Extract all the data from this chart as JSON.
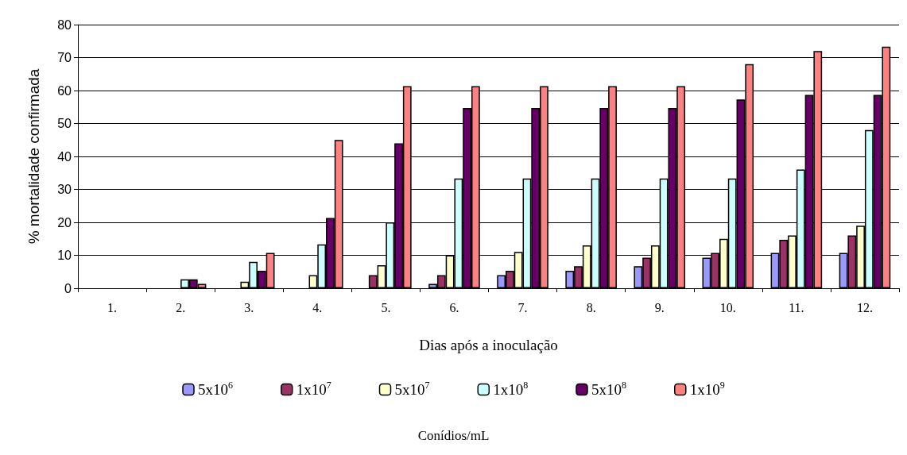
{
  "chart_data": {
    "type": "bar",
    "xlabel": "Dias após a inoculação",
    "ylabel": "% mortalidade confirmada",
    "legend_title": "Conídios/mL",
    "categories": [
      "1.",
      "2.",
      "3.",
      "4.",
      "5.",
      "6.",
      "7.",
      "8.",
      "9.",
      "10.",
      "11.",
      "12."
    ],
    "series": [
      {
        "name": "5x10$^{6}$",
        "color": "#9999ff",
        "values": [
          0,
          0,
          0,
          0,
          0,
          1.3,
          4,
          5.3,
          6.7,
          9.3,
          10.7,
          10.7
        ]
      },
      {
        "name": "1x10$^{7}$",
        "color": "#993366",
        "values": [
          0,
          0,
          0,
          0,
          4,
          4,
          5.3,
          6.7,
          9.3,
          10.7,
          14.7,
          16
        ]
      },
      {
        "name": "5x10$^{7}$",
        "color": "#ffffcc",
        "values": [
          0,
          0,
          2,
          4,
          7,
          10,
          11,
          13,
          13,
          15,
          16,
          19
        ]
      },
      {
        "name": "1x10$^{8}$",
        "color": "#ccffff",
        "values": [
          0,
          2.7,
          8,
          13.3,
          20,
          33.3,
          33.3,
          33.3,
          33.3,
          33.3,
          36,
          48
        ]
      },
      {
        "name": "5x10$^{8}$",
        "color": "#660066",
        "values": [
          0,
          2.7,
          5.3,
          21.3,
          44,
          54.7,
          54.7,
          54.7,
          54.7,
          57.3,
          58.7,
          58.7
        ]
      },
      {
        "name": "1x10$^{9}$",
        "color": "#ff8080",
        "values": [
          0,
          1.3,
          10.7,
          45,
          61.3,
          61.3,
          61.3,
          61.3,
          61.3,
          68,
          72,
          73.3
        ]
      }
    ],
    "ylim": [
      0,
      80
    ],
    "yticks": [
      0,
      10,
      20,
      30,
      40,
      50,
      60,
      70,
      80
    ],
    "grid": "y",
    "legend": "bottom"
  }
}
